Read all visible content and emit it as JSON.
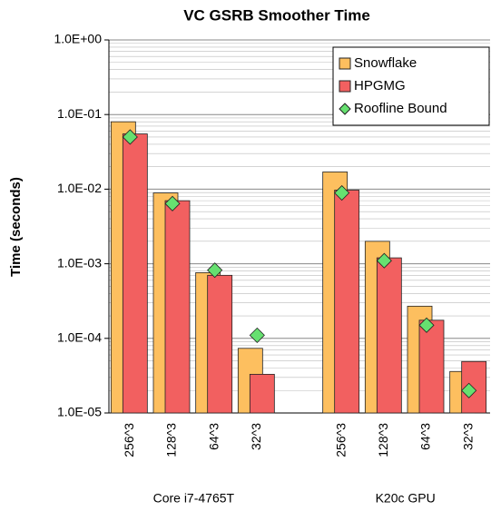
{
  "chart_data": {
    "type": "bar",
    "title": "VC GSRB Smoother Time",
    "y_label": "Time (seconds)",
    "log_scale": true,
    "grid": true,
    "minor_grid": true,
    "legend_position": "upper right",
    "categories": [
      "256^3",
      "128^3",
      "64^3",
      "32^3",
      null,
      "256^3",
      "128^3",
      "64^3",
      "32^3"
    ],
    "group_labels": [
      "Core i7-4765T",
      "K20c GPU"
    ],
    "series": [
      {
        "name": "Snowflake",
        "color": "#fdbf5f",
        "marker": "bar",
        "values": [
          0.08,
          0.0089,
          0.00076,
          7.35e-05,
          null,
          0.017,
          0.002,
          0.00027,
          3.6e-05
        ]
      },
      {
        "name": "HPGMG",
        "color": "#f26060",
        "marker": "bar",
        "values": [
          0.055,
          0.007,
          0.0007,
          3.3e-05,
          null,
          0.0097,
          0.0012,
          0.000175,
          4.9e-05
        ]
      },
      {
        "name": "Roofline Bound",
        "color": "#66e070",
        "marker": "diamond",
        "values": [
          0.05,
          0.0064,
          0.00082,
          0.00011,
          null,
          0.0089,
          0.0011,
          0.00015,
          2e-05
        ]
      }
    ],
    "ylim": [
      1e-05,
      1
    ],
    "yticks": [
      {
        "value": 1e-05,
        "label": "1.0E-05"
      },
      {
        "value": 0.0001,
        "label": "1.0E-04"
      },
      {
        "value": 0.001,
        "label": "1.0E-03"
      },
      {
        "value": 0.01,
        "label": "1.0E-02"
      },
      {
        "value": 0.1,
        "label": "1.0E-01"
      },
      {
        "value": 1,
        "label": "1.0E+00"
      }
    ]
  }
}
